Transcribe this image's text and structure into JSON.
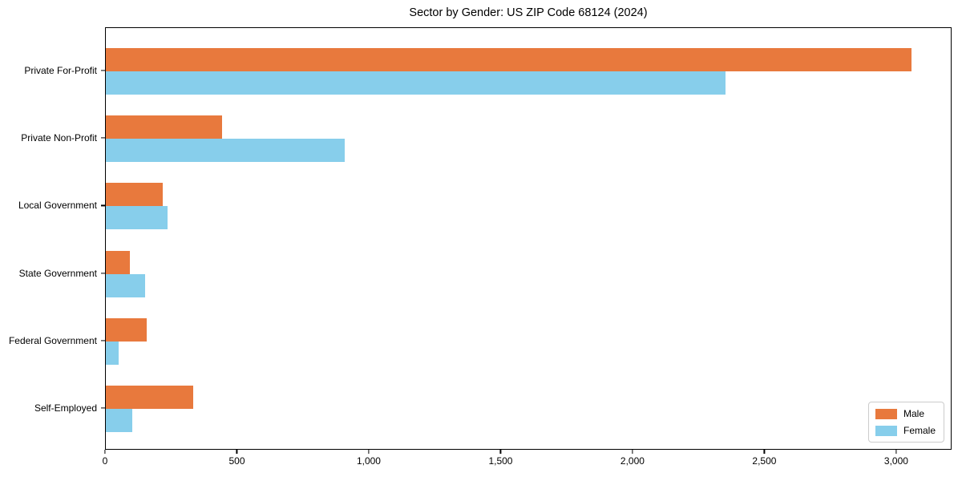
{
  "chart_data": {
    "type": "bar",
    "orientation": "horizontal",
    "title": "Sector by Gender: US ZIP Code 68124 (2024)",
    "categories": [
      "Private For-Profit",
      "Private Non-Profit",
      "Local Government",
      "State Government",
      "Federal Government",
      "Self-Employed"
    ],
    "series": [
      {
        "name": "Male",
        "color": "#e8793d",
        "values": [
          3055,
          440,
          215,
          90,
          155,
          330
        ]
      },
      {
        "name": "Female",
        "color": "#87ceeb",
        "values": [
          2350,
          905,
          235,
          150,
          50,
          100
        ]
      }
    ],
    "xlabel": "",
    "ylabel": "",
    "xlim": [
      0,
      3210
    ],
    "x_ticks": [
      0,
      500,
      1000,
      1500,
      2000,
      2500,
      3000
    ],
    "x_tick_labels": [
      "0",
      "500",
      "1,000",
      "1,500",
      "2,000",
      "2,500",
      "3,000"
    ],
    "grid": false,
    "legend_position": "lower right",
    "colors": {
      "male": "#e8793d",
      "female": "#87ceeb",
      "spine": "#000000",
      "legend_border": "#cccccc"
    }
  }
}
